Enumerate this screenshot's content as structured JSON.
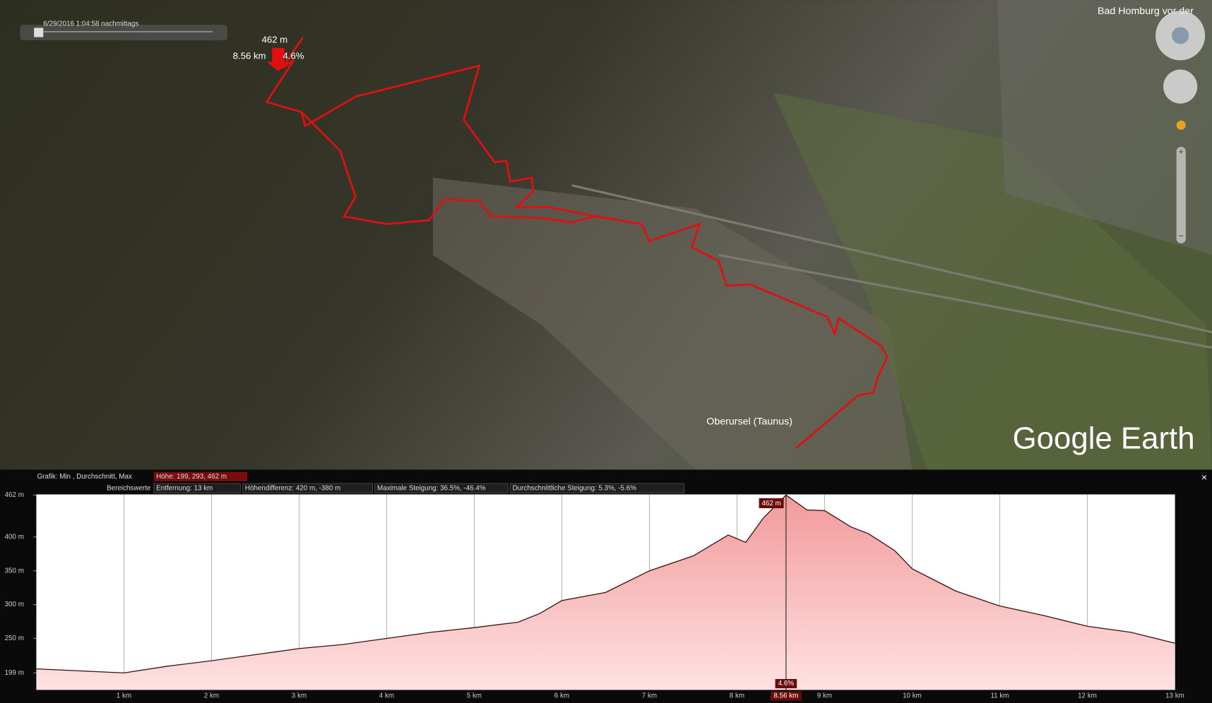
{
  "map": {
    "timestamp": "6/29/2016  1:04:58 nachmittags",
    "marker_elevation": "462 m",
    "marker_distance": "8.56 km",
    "marker_slope": "4.6%",
    "place_top_right": "Bad Homburg vor der",
    "place_center": "Oberursel (Taunus)",
    "brand": "Google Earth"
  },
  "panel": {
    "close": "×",
    "graph_label": "Grafik: Min , Durchschnitt, Max",
    "height_stats": "Höhe: 199, 293, 462 m",
    "range_label": "Bereichswerte",
    "distance": "Entfernung: 13 km",
    "height_diff": "Höhendifferenz: 420 m, -380 m",
    "max_slope": "Maximale Steigung: 36.5%, -46.4%",
    "avg_slope": "Durchschnittliche Steigung: 5.3%, -5.6%"
  },
  "chart_data": {
    "type": "area",
    "color": "#f4a3a3",
    "line_color": "#3a1010",
    "x": [
      0,
      0.5,
      1,
      1.5,
      2,
      2.5,
      3,
      3.5,
      4,
      4.5,
      5,
      5.5,
      5.75,
      6,
      6.5,
      7,
      7.5,
      7.9,
      8.1,
      8.3,
      8.56,
      8.8,
      9,
      9.3,
      9.5,
      9.8,
      10,
      10.5,
      11,
      11.5,
      12,
      12.5,
      13
    ],
    "values": [
      205,
      202,
      199,
      209,
      217,
      226,
      235,
      241,
      250,
      259,
      266,
      274,
      287,
      306,
      318,
      350,
      372,
      403,
      392,
      428,
      462,
      440,
      439,
      415,
      405,
      380,
      353,
      320,
      298,
      284,
      268,
      259,
      243
    ],
    "xlim": [
      0,
      13
    ],
    "ylim": [
      174,
      463
    ],
    "xticks": [
      {
        "value": 1,
        "label": "1 km"
      },
      {
        "value": 2,
        "label": "2 km"
      },
      {
        "value": 3,
        "label": "3 km"
      },
      {
        "value": 4,
        "label": "4 km"
      },
      {
        "value": 5,
        "label": "5 km"
      },
      {
        "value": 6,
        "label": "6 km"
      },
      {
        "value": 7,
        "label": "7 km"
      },
      {
        "value": 8,
        "label": "8 km"
      },
      {
        "value": 9,
        "label": "9 km"
      },
      {
        "value": 10,
        "label": "10 km"
      },
      {
        "value": 11,
        "label": "11 km"
      },
      {
        "value": 12,
        "label": "12 km"
      },
      {
        "value": 13,
        "label": "13 km"
      }
    ],
    "yticks": [
      {
        "value": 199,
        "label": "199 m"
      },
      {
        "value": 250,
        "label": "250 m"
      },
      {
        "value": 300,
        "label": "300 m"
      },
      {
        "value": 350,
        "label": "350 m"
      },
      {
        "value": 400,
        "label": "400 m"
      },
      {
        "value": 462,
        "label": "462 m"
      }
    ],
    "grid": true,
    "cursor": {
      "x": 8.56,
      "y": 462,
      "x_label": "8.56 km",
      "y_label": "462 m",
      "slope_label": "4.6%"
    }
  }
}
